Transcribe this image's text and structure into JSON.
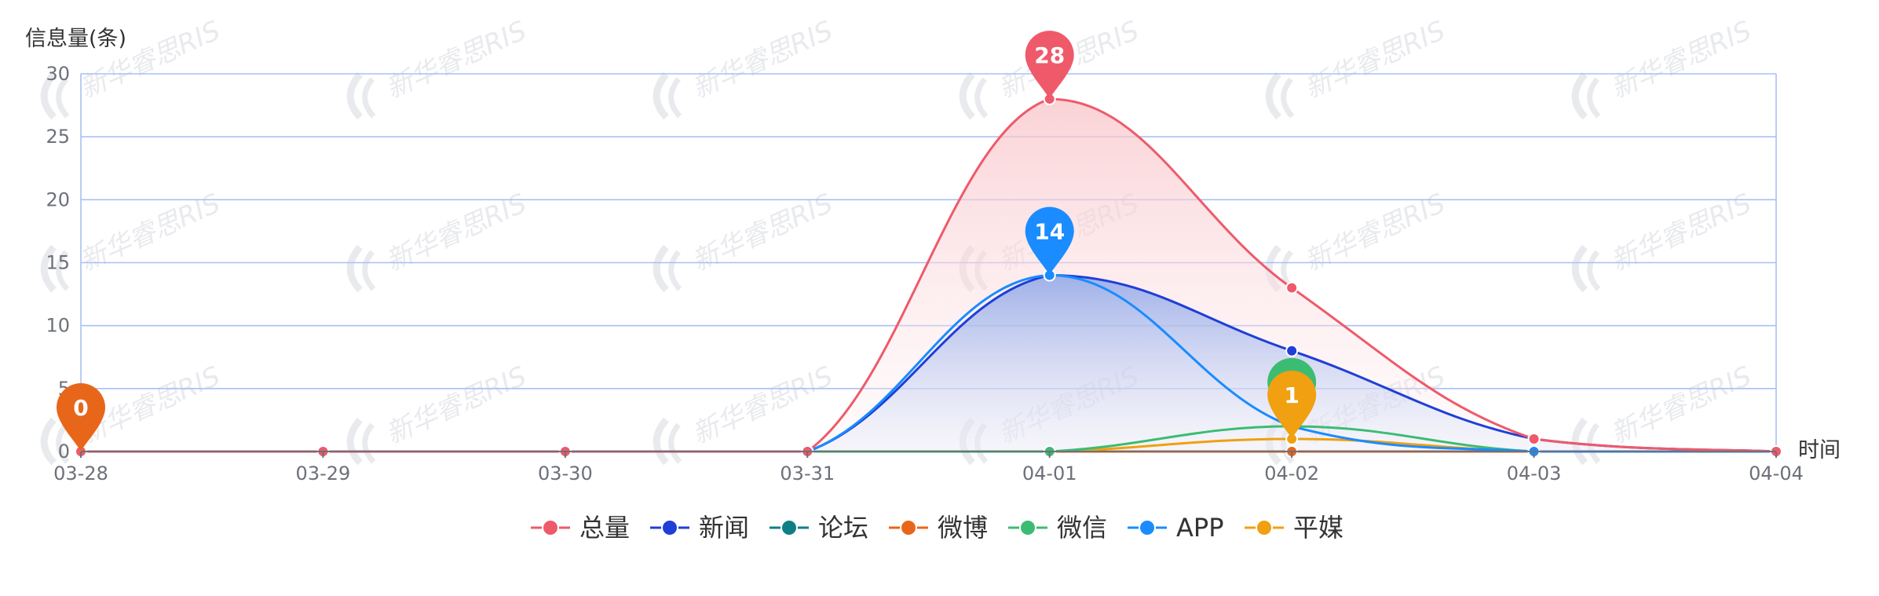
{
  "chart_data": {
    "type": "line",
    "ylabel": "信息量(条)",
    "xlabel": "时间",
    "categories": [
      "03-28",
      "03-29",
      "03-30",
      "03-31",
      "04-01",
      "04-02",
      "04-03",
      "04-04"
    ],
    "ylim": [
      0,
      30
    ],
    "yticks": [
      0,
      5,
      10,
      15,
      20,
      25,
      30
    ],
    "grid": true,
    "legend_position": "bottom-center",
    "series": [
      {
        "name": "总量",
        "values": [
          0,
          0,
          0,
          0,
          28,
          13,
          1,
          0
        ],
        "color": "#ee5a6a",
        "area": true
      },
      {
        "name": "新闻",
        "values": [
          0,
          0,
          0,
          0,
          14,
          8,
          1,
          0
        ],
        "color": "#1f3fd8",
        "area": true
      },
      {
        "name": "论坛",
        "values": [
          0,
          0,
          0,
          0,
          0,
          0,
          0,
          0
        ],
        "color": "#0f7f86",
        "area": false
      },
      {
        "name": "微博",
        "values": [
          0,
          0,
          0,
          0,
          0,
          0,
          0,
          0
        ],
        "color": "#e8661a",
        "area": false
      },
      {
        "name": "微信",
        "values": [
          0,
          0,
          0,
          0,
          0,
          2,
          0,
          0
        ],
        "color": "#3cbc72",
        "area": false
      },
      {
        "name": "APP",
        "values": [
          0,
          0,
          0,
          0,
          14,
          2,
          0,
          0
        ],
        "color": "#1a8cff",
        "area": false
      },
      {
        "name": "平媒",
        "values": [
          0,
          0,
          0,
          0,
          0,
          1,
          0,
          0
        ],
        "color": "#f0a010",
        "area": false
      }
    ],
    "markers": [
      {
        "series": "微博",
        "category": "03-28",
        "value": 0,
        "label": "0",
        "color": "#e8661a"
      },
      {
        "series": "总量",
        "category": "04-01",
        "value": 28,
        "label": "28",
        "color": "#ee5a6a"
      },
      {
        "series": "APP",
        "category": "04-01",
        "value": 14,
        "label": "14",
        "color": "#1a8cff"
      },
      {
        "series": "微信",
        "category": "04-02",
        "value": 2,
        "label": "",
        "color": "#3cbc72"
      },
      {
        "series": "平媒",
        "category": "04-02",
        "value": 1,
        "label": "1",
        "color": "#f0a010"
      }
    ],
    "watermark": "新华睿思RIS"
  }
}
